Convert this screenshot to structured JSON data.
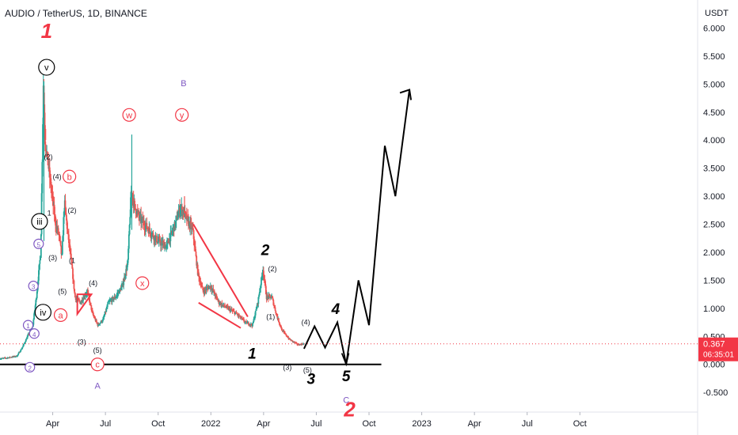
{
  "header": {
    "title": "AUDIO / TetherUS, 1D, BINANCE"
  },
  "price_scale": {
    "unit": "USDT"
  },
  "current_price": {
    "value": "0.367",
    "countdown": "06:35:01",
    "color": "#f23645"
  },
  "colors": {
    "candle_up": "#26a69a",
    "candle_down": "#ef5350",
    "red": "#f23645",
    "purple": "#7e57c2",
    "black": "#000000"
  },
  "chart_data": {
    "type": "candlestick",
    "y_ticks": [
      "6.000",
      "5.500",
      "5.000",
      "4.500",
      "4.000",
      "3.500",
      "3.000",
      "2.500",
      "2.000",
      "1.500",
      "1.000",
      "0.500",
      "0.000",
      "-0.500"
    ],
    "y_tick_values": [
      6,
      5.5,
      5,
      4.5,
      4,
      3.5,
      3,
      2.5,
      2,
      1.5,
      1,
      0.5,
      0,
      -0.5
    ],
    "ylim": [
      -0.85,
      6.5
    ],
    "x_ticks": [
      "Apr",
      "Jul",
      "Oct",
      "2022",
      "Apr",
      "Jul",
      "Oct",
      "2023",
      "Apr",
      "Jul",
      "Oct"
    ],
    "x_tick_months": [
      3,
      6,
      9,
      12,
      15,
      18,
      21,
      24,
      27,
      30,
      33
    ],
    "xlim": [
      0.0,
      39.7
    ],
    "price_path": [
      [
        0.0,
        0.1
      ],
      [
        0.5,
        0.12
      ],
      [
        1.0,
        0.15
      ],
      [
        1.3,
        0.3
      ],
      [
        1.6,
        0.5
      ],
      [
        1.9,
        0.7
      ],
      [
        2.1,
        1.2
      ],
      [
        2.35,
        2.0
      ],
      [
        2.5,
        5.0
      ],
      [
        2.6,
        4.0
      ],
      [
        2.8,
        3.5
      ],
      [
        3.0,
        3.0
      ],
      [
        3.2,
        2.5
      ],
      [
        3.4,
        2.3
      ],
      [
        3.55,
        1.9
      ],
      [
        3.7,
        2.9
      ],
      [
        3.9,
        2.3
      ],
      [
        4.1,
        1.8
      ],
      [
        4.3,
        1.2
      ],
      [
        4.6,
        1.1
      ],
      [
        5.0,
        1.3
      ],
      [
        5.3,
        0.9
      ],
      [
        5.6,
        0.7
      ],
      [
        5.9,
        0.8
      ],
      [
        6.2,
        1.1
      ],
      [
        6.6,
        1.2
      ],
      [
        7.0,
        1.4
      ],
      [
        7.3,
        1.8
      ],
      [
        7.5,
        3.1
      ],
      [
        7.7,
        2.8
      ],
      [
        8.0,
        2.6
      ],
      [
        8.5,
        2.4
      ],
      [
        9.0,
        2.2
      ],
      [
        9.5,
        2.1
      ],
      [
        10.0,
        2.5
      ],
      [
        10.3,
        2.8
      ],
      [
        10.5,
        2.7
      ],
      [
        10.8,
        2.5
      ],
      [
        11.0,
        2.4
      ],
      [
        11.3,
        1.6
      ],
      [
        11.6,
        1.3
      ],
      [
        12.0,
        1.4
      ],
      [
        12.5,
        1.1
      ],
      [
        13.0,
        1.0
      ],
      [
        13.5,
        0.9
      ],
      [
        14.0,
        0.75
      ],
      [
        14.4,
        0.7
      ],
      [
        14.7,
        1.1
      ],
      [
        15.0,
        1.7
      ],
      [
        15.2,
        1.2
      ],
      [
        15.5,
        1.2
      ],
      [
        15.8,
        0.85
      ],
      [
        16.1,
        0.6
      ],
      [
        16.5,
        0.45
      ],
      [
        17.0,
        0.35
      ],
      [
        17.3,
        0.367
      ]
    ],
    "down_candles": [
      [
        2.6,
        4.2
      ],
      [
        5.3,
        0.95
      ],
      [
        10.5,
        3.0
      ],
      [
        11.3,
        1.7
      ],
      [
        15.8,
        0.9
      ]
    ],
    "waves": {
      "projection": [
        [
          17.3,
          0.28
        ],
        [
          17.9,
          0.68
        ],
        [
          18.5,
          0.3
        ],
        [
          19.2,
          0.75
        ],
        [
          19.7,
          0.0
        ],
        [
          20.4,
          1.5
        ],
        [
          21.0,
          0.7
        ],
        [
          21.9,
          3.9
        ],
        [
          22.5,
          3.0
        ],
        [
          23.3,
          4.9
        ]
      ],
      "wedge1": [
        [
          4.4,
          0.9
        ],
        [
          5.2,
          1.25
        ],
        [
          4.4,
          1.25
        ]
      ],
      "wedge2_upper": [
        [
          11.0,
          2.5
        ],
        [
          14.1,
          0.85
        ]
      ],
      "wedge2_lower": [
        [
          11.3,
          1.1
        ],
        [
          13.7,
          0.65
        ]
      ],
      "support_line": {
        "value": 0.0,
        "x_start": 0.0,
        "x_end": 21.7
      },
      "labels": [
        {
          "t": "1",
          "x": 2.65,
          "y": 5.95,
          "style": "big-red"
        },
        {
          "t": "v",
          "x": 2.65,
          "y": 5.3,
          "style": "circle-black"
        },
        {
          "t": "iii",
          "x": 2.25,
          "y": 2.55,
          "style": "circle-black"
        },
        {
          "t": "iv",
          "x": 2.45,
          "y": 0.93,
          "style": "circle-black"
        },
        {
          "t": "5",
          "x": 2.2,
          "y": 2.15,
          "style": "circle-purple"
        },
        {
          "t": "4",
          "x": 1.95,
          "y": 0.55,
          "style": "circle-purple"
        },
        {
          "t": "3",
          "x": 1.9,
          "y": 1.4,
          "style": "circle-purple"
        },
        {
          "t": "1",
          "x": 1.6,
          "y": 0.7,
          "style": "circle-purple"
        },
        {
          "t": "2",
          "x": 1.7,
          "y": -0.05,
          "style": "circle-purple"
        },
        {
          "t": "a",
          "x": 3.45,
          "y": 0.88,
          "style": "circle-red"
        },
        {
          "t": "b",
          "x": 3.95,
          "y": 3.35,
          "style": "circle-red"
        },
        {
          "t": "c",
          "x": 5.55,
          "y": 0.0,
          "style": "circle-red"
        },
        {
          "t": "w",
          "x": 7.35,
          "y": 4.45,
          "style": "circle-red"
        },
        {
          "t": "x",
          "x": 8.1,
          "y": 1.45,
          "style": "circle-red"
        },
        {
          "t": "y",
          "x": 10.35,
          "y": 4.45,
          "style": "circle-red"
        },
        {
          "t": "(2)",
          "x": 2.75,
          "y": 3.7,
          "style": "small"
        },
        {
          "t": "(4)",
          "x": 3.25,
          "y": 3.35,
          "style": "small"
        },
        {
          "t": "1",
          "x": 2.8,
          "y": 2.7,
          "style": "small"
        },
        {
          "t": "(2)",
          "x": 4.1,
          "y": 2.75,
          "style": "small"
        },
        {
          "t": "(3)",
          "x": 3.0,
          "y": 1.9,
          "style": "small"
        },
        {
          "t": "(1",
          "x": 4.1,
          "y": 1.85,
          "style": "small"
        },
        {
          "t": "(5)",
          "x": 3.55,
          "y": 1.3,
          "style": "small"
        },
        {
          "t": "(4)",
          "x": 5.3,
          "y": 1.45,
          "style": "small"
        },
        {
          "t": "(3)",
          "x": 4.65,
          "y": 0.4,
          "style": "small"
        },
        {
          "t": "(5)",
          "x": 5.55,
          "y": 0.25,
          "style": "small"
        },
        {
          "t": "(2)",
          "x": 15.5,
          "y": 1.7,
          "style": "small"
        },
        {
          "t": "(1)",
          "x": 15.4,
          "y": 0.85,
          "style": "small"
        },
        {
          "t": "(4)",
          "x": 17.4,
          "y": 0.75,
          "style": "small"
        },
        {
          "t": "(3)",
          "x": 16.35,
          "y": -0.05,
          "style": "small"
        },
        {
          "t": "(5)",
          "x": 17.5,
          "y": -0.1,
          "style": "small"
        },
        {
          "t": "A",
          "x": 5.55,
          "y": -0.35,
          "style": "plain-purple"
        },
        {
          "t": "B",
          "x": 10.45,
          "y": 5.05,
          "style": "plain-purple"
        },
        {
          "t": "C",
          "x": 19.7,
          "y": -0.6,
          "style": "plain-purple"
        },
        {
          "t": "2",
          "x": 15.1,
          "y": 2.05,
          "style": "big-black"
        },
        {
          "t": "1",
          "x": 14.35,
          "y": 0.2,
          "style": "big-black"
        },
        {
          "t": "3",
          "x": 17.7,
          "y": -0.25,
          "style": "big-black"
        },
        {
          "t": "4",
          "x": 19.1,
          "y": 1.0,
          "style": "big-black"
        },
        {
          "t": "5",
          "x": 19.7,
          "y": -0.2,
          "style": "big-black"
        },
        {
          "t": "2",
          "x": 19.9,
          "y": -0.8,
          "style": "big-red"
        }
      ]
    }
  }
}
